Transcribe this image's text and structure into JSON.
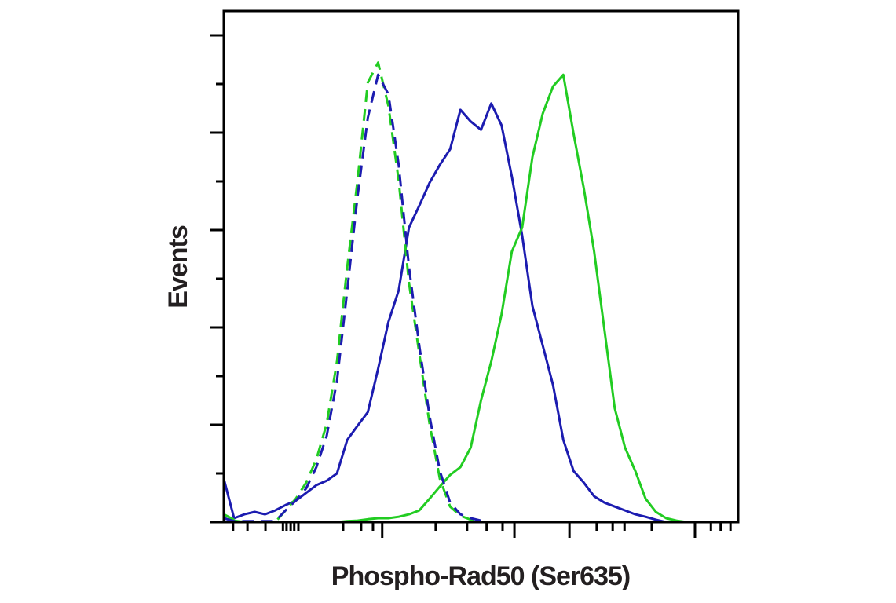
{
  "chart_data": {
    "type": "line",
    "xlabel": "Phospho-Rad50 (Ser635)",
    "ylabel": "Events",
    "x": [
      0,
      2,
      4,
      6,
      8,
      10,
      12,
      14,
      16,
      18,
      20,
      22,
      24,
      26,
      28,
      30,
      32,
      34,
      36,
      38,
      40,
      42,
      44,
      46,
      48,
      50,
      52,
      54,
      56,
      58,
      60,
      62,
      64,
      66,
      68,
      70,
      72,
      74,
      76,
      78,
      80,
      82,
      84,
      86,
      88,
      90,
      92,
      94,
      96,
      98,
      100
    ],
    "series": [
      {
        "color": "#1c1cb0",
        "dashed": false,
        "values": [
          8.9,
          0.8,
          1.6,
          2.1,
          1.6,
          2.4,
          3.5,
          4.4,
          6,
          7.6,
          8.5,
          10,
          16.9,
          19.8,
          22.6,
          31.5,
          41.1,
          47.6,
          60.5,
          65,
          69.7,
          73.4,
          76.6,
          84.7,
          82.3,
          80.6,
          86,
          81.5,
          71,
          58.9,
          44.4,
          36.3,
          28.2,
          16.9,
          10.5,
          8.1,
          5.3,
          4,
          3.2,
          2.4,
          1.6,
          1.1,
          0.5,
          0,
          0,
          0,
          0,
          0,
          0,
          0,
          0
        ]
      },
      {
        "color": "#22cc22",
        "dashed": false,
        "values": [
          0.8,
          0.3,
          0,
          0,
          0,
          0,
          0,
          0,
          0,
          0,
          0,
          0,
          0.2,
          0.3,
          0.6,
          0.8,
          0.8,
          1.1,
          1.6,
          2.4,
          4.8,
          7.3,
          9.7,
          11.3,
          15.3,
          25,
          33,
          42.7,
          55.6,
          60.5,
          75,
          83.9,
          89.5,
          91.9,
          79.8,
          68.5,
          55.6,
          39.5,
          23.4,
          15.3,
          10.5,
          4.8,
          2.1,
          0.8,
          0.3,
          0,
          0,
          0,
          0,
          0,
          0
        ]
      },
      {
        "color": "#22cc22",
        "dashed": true,
        "values": [
          1.6,
          0.5,
          0,
          0,
          0,
          0,
          2.4,
          4.8,
          8.1,
          12.9,
          20.2,
          33,
          52.4,
          70.2,
          90.3,
          94.4,
          85.5,
          70.2,
          49.2,
          34.7,
          20.2,
          8.9,
          3.2,
          1.3,
          0.5,
          0,
          0,
          0,
          0,
          0,
          0,
          0,
          0,
          0,
          0,
          0,
          0,
          0,
          0,
          0,
          0,
          0,
          0,
          0,
          0,
          0,
          0,
          0,
          0,
          0,
          0
        ]
      },
      {
        "color": "#1c1cb0",
        "dashed": true,
        "values": [
          0.8,
          0.2,
          0.2,
          0.2,
          0.2,
          0.2,
          2.4,
          4.4,
          6.9,
          11.3,
          17.7,
          29,
          47.6,
          66.9,
          83.1,
          91.9,
          87.9,
          73.4,
          52.4,
          36.3,
          21.8,
          10.5,
          4,
          1.6,
          0.8,
          0.3,
          0,
          0,
          0,
          0,
          0,
          0,
          0,
          0,
          0,
          0,
          0,
          0,
          0,
          0,
          0,
          0,
          0,
          0,
          0,
          0,
          0,
          0,
          0,
          0,
          0
        ]
      }
    ],
    "xlim": [
      0,
      100
    ],
    "ylim": [
      0,
      105
    ],
    "xticks": [
      30.8,
      56.5,
      67.2,
      91.6
    ],
    "xticks_minor": [
      1.8,
      4.6,
      8.1,
      11.5,
      12.2,
      13,
      13.7,
      14.5,
      23.2,
      26.7,
      29,
      41.2,
      47.3,
      51.1,
      54.2,
      72.5,
      75.6,
      77.9,
      83.2,
      94.7,
      96.6,
      98.5
    ],
    "yticks": [
      0,
      20,
      40,
      60,
      80,
      100
    ],
    "yticks_minor": [
      10,
      30,
      50,
      70,
      90
    ]
  }
}
